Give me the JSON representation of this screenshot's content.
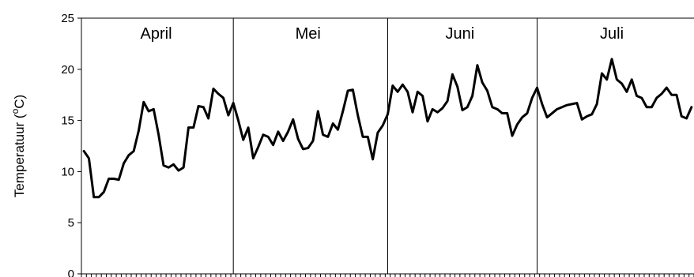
{
  "chart_data": {
    "type": "line",
    "title": "",
    "xlabel": "",
    "ylabel_text": "Temperatuur (",
    "ylabel_sup": "o",
    "ylabel_suffix": "C)",
    "ylim": [
      0,
      25
    ],
    "yticks": [
      "0",
      "5",
      "10",
      "15",
      "20",
      "25"
    ],
    "grid": false,
    "line_color": "#000000",
    "months": [
      {
        "label": "April",
        "start_day": 0,
        "days": 30
      },
      {
        "label": "Mei",
        "start_day": 30,
        "days": 31
      },
      {
        "label": "Juni",
        "start_day": 61,
        "days": 30
      },
      {
        "label": "Juli",
        "start_day": 91,
        "days": 31
      }
    ],
    "series": [
      {
        "values": [
          12.0,
          11.3,
          7.5,
          7.5,
          8.0,
          9.3,
          9.3,
          9.2,
          10.8,
          11.6,
          12.0,
          14.0,
          16.8,
          15.9,
          16.1,
          13.6,
          10.6,
          10.4,
          10.7,
          10.1,
          10.4,
          14.3,
          14.3,
          16.4,
          16.3,
          15.2,
          18.1,
          17.6,
          17.2,
          15.5,
          16.7,
          15.0,
          13.1,
          14.3,
          11.3,
          12.4,
          13.6,
          13.4,
          12.6,
          13.9,
          13.0,
          13.9,
          15.1,
          13.2,
          12.2,
          12.3,
          13.0,
          15.9,
          13.6,
          13.4,
          14.7,
          14.1,
          15.9,
          17.9,
          18.0,
          15.5,
          13.4,
          13.4,
          11.2,
          13.8,
          14.5,
          15.6,
          18.4,
          17.8,
          18.5,
          17.8,
          15.8,
          17.8,
          17.4,
          14.9,
          16.1,
          15.8,
          16.2,
          16.9,
          19.5,
          18.3,
          16.0,
          16.3,
          17.4,
          20.4,
          18.7,
          17.9,
          16.3,
          16.1,
          15.7,
          15.7,
          13.5,
          14.6,
          15.3,
          15.7,
          17.2,
          18.2,
          16.6,
          15.3,
          15.7,
          16.1,
          16.3,
          16.5,
          16.6,
          16.7,
          15.1,
          15.4,
          15.6,
          16.6,
          19.6,
          19.0,
          21.0,
          19.0,
          18.6,
          17.8,
          19.0,
          17.4,
          17.2,
          16.3,
          16.3,
          17.2,
          17.6,
          18.2,
          17.5,
          17.5,
          15.4,
          15.2,
          16.3
        ]
      }
    ]
  }
}
